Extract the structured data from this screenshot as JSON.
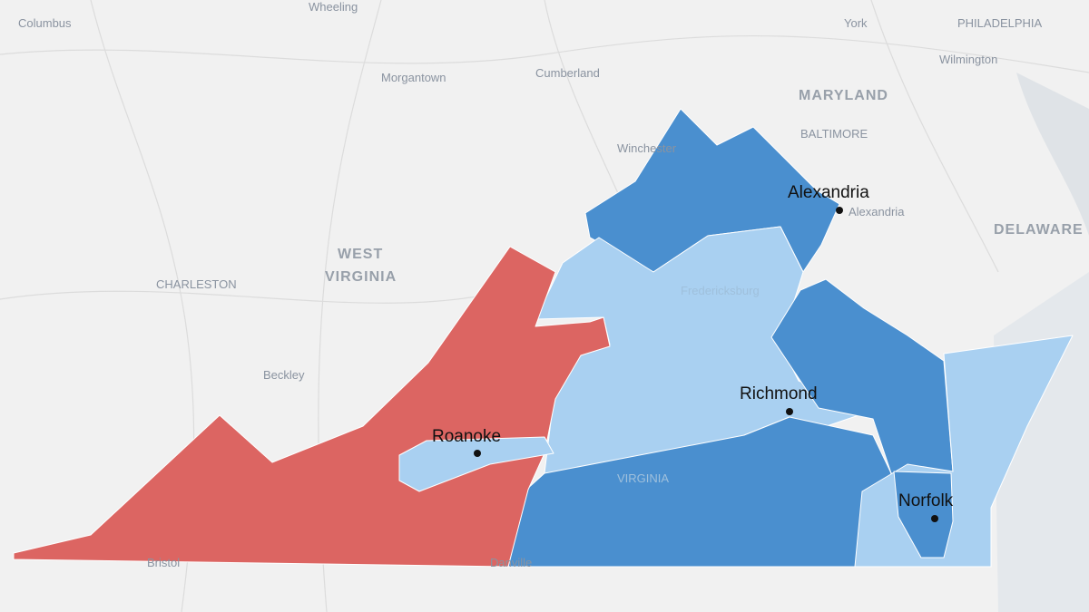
{
  "base_labels": [
    {
      "text": "Columbus"
    },
    {
      "text": "Wheeling"
    },
    {
      "text": "York"
    },
    {
      "text": "PHILADELPHIA"
    },
    {
      "text": "Morgantown"
    },
    {
      "text": "Cumberland"
    },
    {
      "text": "Wilmington"
    },
    {
      "text": "MARYLAND"
    },
    {
      "text": "BALTIMORE"
    },
    {
      "text": "Winchester"
    },
    {
      "text": "Alexandria"
    },
    {
      "text": "DELAWARE"
    },
    {
      "text": "WEST"
    },
    {
      "text": "VIRGINIA"
    },
    {
      "text": "CHARLESTON"
    },
    {
      "text": "Beckley"
    },
    {
      "text": "Fredericksburg"
    },
    {
      "text": "VIRGINIA"
    },
    {
      "text": "Bristol"
    },
    {
      "text": "Danville"
    }
  ],
  "cities": [
    {
      "label": "Alexandria"
    },
    {
      "label": "Richmond"
    },
    {
      "label": "Roanoke"
    },
    {
      "label": "Norfolk"
    }
  ]
}
